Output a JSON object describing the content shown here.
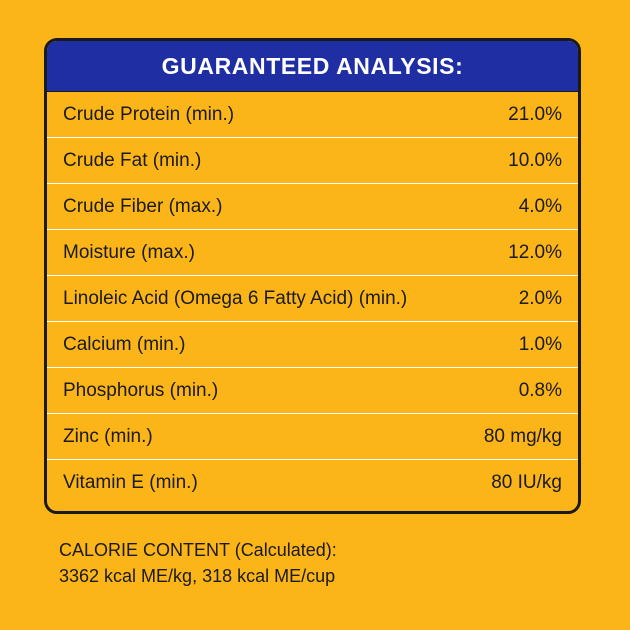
{
  "panel": {
    "title": "GUARANTEED ANALYSIS:",
    "rows": [
      {
        "nutrient": "Crude Protein (min.)",
        "amount": "21.0%"
      },
      {
        "nutrient": "Crude Fat (min.)",
        "amount": "10.0%"
      },
      {
        "nutrient": "Crude Fiber (max.)",
        "amount": "4.0%"
      },
      {
        "nutrient": "Moisture (max.)",
        "amount": "12.0%"
      },
      {
        "nutrient": "Linoleic Acid (Omega 6 Fatty Acid) (min.)",
        "amount": "2.0%"
      },
      {
        "nutrient": "Calcium (min.)",
        "amount": "1.0%"
      },
      {
        "nutrient": "Phosphorus (min.)",
        "amount": "0.8%"
      },
      {
        "nutrient": "Zinc (min.)",
        "amount": "80 mg/kg"
      },
      {
        "nutrient": "Vitamin E (min.)",
        "amount": "80 IU/kg"
      }
    ]
  },
  "calorie": {
    "heading": "CALORIE CONTENT (Calculated):",
    "values": "3362 kcal ME/kg, 318 kcal ME/cup"
  },
  "colors": {
    "background": "#FBB519",
    "header": "#1F2FA3",
    "border": "#1A1A1A",
    "divider": "#FFFFFF"
  }
}
